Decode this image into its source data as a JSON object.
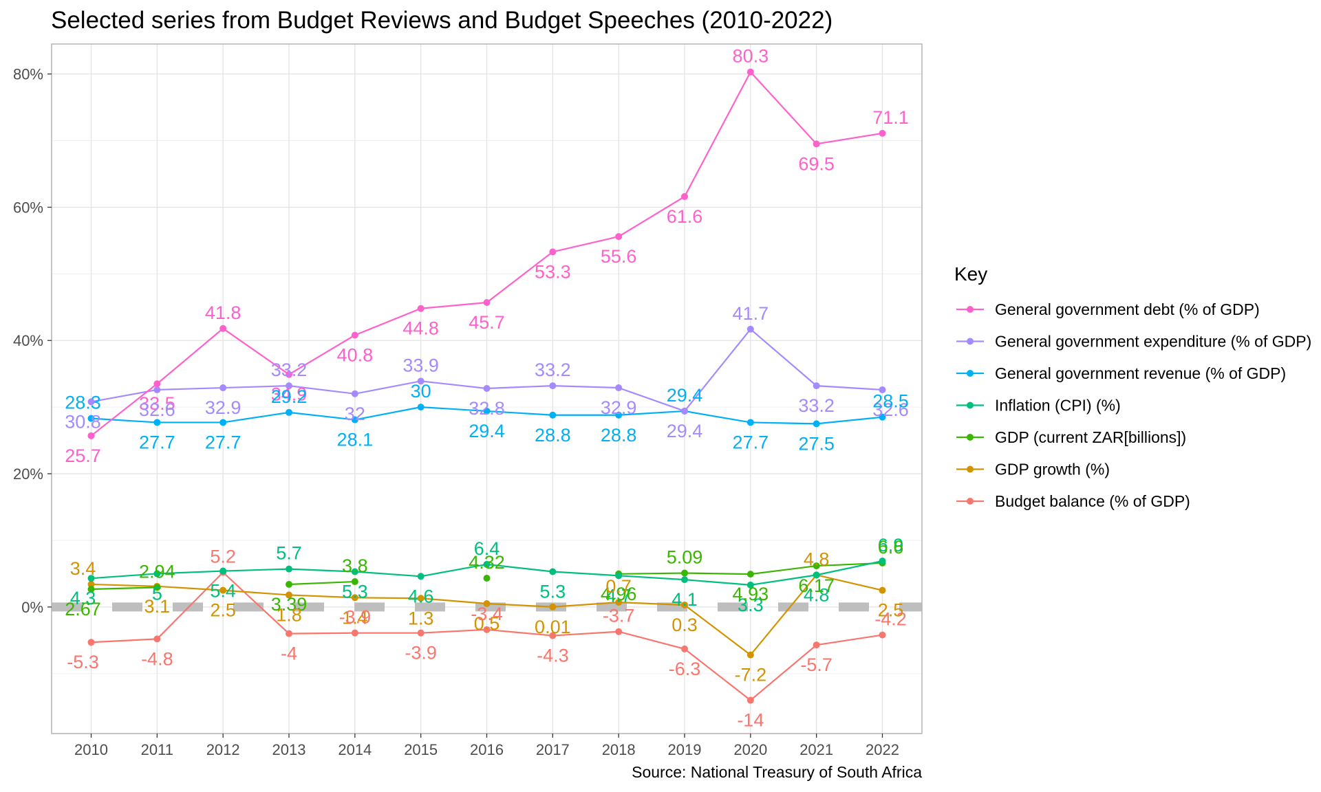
{
  "title": "Selected series from Budget Reviews and Budget Speeches (2010-2022)",
  "caption": "Source: National Treasury of South Africa",
  "legend": {
    "title": "Key"
  },
  "chart_data": {
    "type": "line",
    "title": "Selected series from Budget Reviews and Budget Speeches (2010-2022)",
    "xlabel": "",
    "ylabel": "",
    "x": [
      2010,
      2011,
      2012,
      2013,
      2014,
      2015,
      2016,
      2017,
      2018,
      2019,
      2020,
      2021,
      2022
    ],
    "x_tick_labels": [
      "2010",
      "2011",
      "2012",
      "2013",
      "2014",
      "2015",
      "2016",
      "2017",
      "2018",
      "2019",
      "2020",
      "2021",
      "2022"
    ],
    "ylim": [
      -19,
      84.5
    ],
    "y_ticks": [
      0,
      20,
      40,
      60,
      80
    ],
    "y_tick_labels": [
      "0%",
      "20%",
      "40%",
      "60%",
      "80%"
    ],
    "reference_line": {
      "y": 0,
      "style": "dashed",
      "color": "#bebebe"
    },
    "grid": true,
    "legend_position": "right",
    "series": [
      {
        "name": "General government debt (% of GDP)",
        "color": "#FF61CC",
        "values": [
          25.7,
          33.5,
          41.8,
          34.9,
          40.8,
          44.8,
          45.7,
          53.3,
          55.6,
          61.6,
          80.3,
          69.5,
          71.1
        ],
        "labels": [
          "25.7",
          "33.5",
          "41.8",
          "34.9",
          "40.8",
          "44.8",
          "45.7",
          "53.3",
          "55.6",
          "61.6",
          "80.3",
          "69.5",
          "71.1"
        ]
      },
      {
        "name": "General government expenditure (% of GDP)",
        "color": "#A58AFF",
        "values": [
          30.8,
          32.6,
          32.9,
          33.2,
          32,
          33.9,
          32.8,
          33.2,
          32.9,
          29.4,
          41.7,
          33.2,
          32.6
        ],
        "labels": [
          "30.8",
          "32.6",
          "32.9",
          "33.2",
          "32",
          "33.9",
          "32.8",
          "33.2",
          "32.9",
          "29.4",
          "41.7",
          "33.2",
          "32.6"
        ]
      },
      {
        "name": "General government revenue (% of GDP)",
        "color": "#00B0F6",
        "values": [
          28.3,
          27.7,
          27.7,
          29.2,
          28.1,
          30,
          29.4,
          28.8,
          28.8,
          29.4,
          27.7,
          27.5,
          28.5
        ],
        "labels": [
          "28.3",
          "27.7",
          "27.7",
          "29.2",
          "28.1",
          "30",
          "29.4",
          "28.8",
          "28.8",
          "29.4",
          "27.7",
          "27.5",
          "28.5"
        ]
      },
      {
        "name": "Inflation (CPI) (%)",
        "color": "#00BF7D",
        "values": [
          4.3,
          5,
          5.4,
          5.7,
          5.3,
          4.6,
          6.4,
          5.3,
          4.7,
          4.1,
          3.3,
          4.8,
          6.9
        ],
        "labels": [
          "4.3",
          "5",
          "5.4",
          "5.7",
          "5.3",
          "4.6",
          "6.4",
          "5.3",
          "4.7",
          "4.1",
          "3.3",
          "4.8",
          "6.9"
        ]
      },
      {
        "name": "GDP (current ZAR[billions])",
        "color": "#39B600",
        "values": [
          2.67,
          2.94,
          null,
          3.39,
          3.8,
          null,
          4.32,
          null,
          4.96,
          5.09,
          4.93,
          6.17,
          6.6
        ],
        "labels": [
          "2.67",
          "2.94",
          null,
          "3.39",
          "3.8",
          null,
          "4.32",
          null,
          "4.96",
          "5.09",
          "4.93",
          "6.17",
          "6.6"
        ]
      },
      {
        "name": "GDP growth (%)",
        "color": "#D39200",
        "values": [
          3.4,
          3.1,
          2.5,
          1.8,
          1.4,
          1.3,
          0.5,
          0.01,
          0.7,
          0.3,
          -7.2,
          4.8,
          2.5
        ],
        "labels": [
          "3.4",
          "3.1",
          "2.5",
          "1.8",
          "1.4",
          "1.3",
          "0.5",
          "0.01",
          "0.7",
          "0.3",
          "-7.2",
          "4.8",
          "2.5"
        ]
      },
      {
        "name": "Budget balance (% of GDP)",
        "color": "#F8766D",
        "values": [
          -5.3,
          -4.8,
          5.2,
          -4,
          -3.9,
          -3.9,
          -3.4,
          -4.3,
          -3.7,
          -6.3,
          -14,
          -5.7,
          -4.2
        ],
        "labels": [
          "-5.3",
          "-4.8",
          "5.2",
          "-4",
          "-3.9",
          "-3.9",
          "-3.4",
          "-4.3",
          "-3.7",
          "-6.3",
          "-14",
          "-5.7",
          "-4.2"
        ]
      }
    ]
  }
}
